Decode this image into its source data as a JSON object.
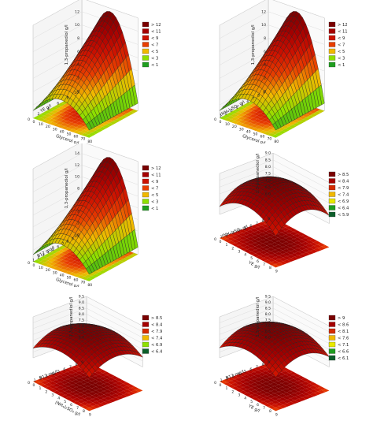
{
  "chart_data": [
    {
      "type": "surface3d",
      "x": {
        "label": "Glycerol g/l",
        "ticks": [
          "0",
          "10",
          "20",
          "30",
          "40",
          "50",
          "60",
          "70",
          "80"
        ],
        "range": [
          0,
          80
        ]
      },
      "y": {
        "label": "YE g/l",
        "ticks": [
          "0",
          "2",
          "4",
          "6",
          "8",
          "10"
        ],
        "range": [
          0,
          10
        ]
      },
      "z": {
        "label": "1,3-propanediol g/l",
        "ticks": [
          "0",
          "2",
          "4",
          "6",
          "8",
          "10",
          "12",
          "14"
        ],
        "range": [
          0,
          14
        ]
      },
      "surface": {
        "z_min": 0.5,
        "z_max": 13.5,
        "shape": "ridge_along_glycerol"
      },
      "legend": {
        "position": "right",
        "entries": [
          {
            "label": "> 12",
            "color": "#7a0000"
          },
          {
            "label": "< 11",
            "color": "#a50000"
          },
          {
            "label": "< 9",
            "color": "#cc1100"
          },
          {
            "label": "< 7",
            "color": "#e83e00"
          },
          {
            "label": "< 5",
            "color": "#f0b800"
          },
          {
            "label": "< 3",
            "color": "#8ee000"
          },
          {
            "label": "< 1",
            "color": "#1f9e1f"
          }
        ]
      }
    },
    {
      "type": "surface3d",
      "x": {
        "label": "Glycerol g/l",
        "ticks": [
          "0",
          "10",
          "20",
          "30",
          "40",
          "50",
          "60",
          "70",
          "80"
        ],
        "range": [
          0,
          80
        ]
      },
      "y": {
        "label": "(NH₄)₂SO₄ g/l",
        "ticks": [
          "0",
          "1",
          "2",
          "3",
          "4",
          "5",
          "6",
          "7",
          "8",
          "9"
        ],
        "range": [
          0,
          9
        ]
      },
      "z": {
        "label": "1,3-propanediol g/l",
        "ticks": [
          "0",
          "2",
          "4",
          "6",
          "8",
          "10",
          "12",
          "14"
        ],
        "range": [
          0,
          14
        ]
      },
      "surface": {
        "z_min": 0.5,
        "z_max": 13.5,
        "shape": "ridge_along_glycerol"
      },
      "legend": {
        "position": "right",
        "entries": [
          {
            "label": "> 12",
            "color": "#7a0000"
          },
          {
            "label": "< 11",
            "color": "#a50000"
          },
          {
            "label": "< 9",
            "color": "#cc1100"
          },
          {
            "label": "< 7",
            "color": "#e83e00"
          },
          {
            "label": "< 5",
            "color": "#f0b800"
          },
          {
            "label": "< 3",
            "color": "#8ee000"
          },
          {
            "label": "< 1",
            "color": "#1f9e1f"
          }
        ]
      }
    },
    {
      "type": "surface3d",
      "x": {
        "label": "Glycerol g/l",
        "ticks": [
          "0",
          "10",
          "20",
          "30",
          "40",
          "50",
          "60",
          "70",
          "80"
        ],
        "range": [
          0,
          80
        ]
      },
      "y": {
        "label": "B12 mg/l",
        "ticks": [
          "0",
          "1",
          "2",
          "3",
          "4",
          "5",
          "6",
          "7",
          "8",
          "9",
          "10"
        ],
        "range": [
          0,
          10
        ]
      },
      "z": {
        "label": "1,3-propanediol g/l",
        "ticks": [
          "0",
          "2",
          "4",
          "6",
          "8",
          "10",
          "12",
          "14",
          "16"
        ],
        "range": [
          0,
          16
        ]
      },
      "surface": {
        "z_min": 0.5,
        "z_max": 15,
        "shape": "ridge_along_glycerol"
      },
      "legend": {
        "position": "right",
        "entries": [
          {
            "label": "> 12",
            "color": "#7a0000"
          },
          {
            "label": "< 11",
            "color": "#a50000"
          },
          {
            "label": "< 9",
            "color": "#cc1100"
          },
          {
            "label": "< 7",
            "color": "#e83e00"
          },
          {
            "label": "< 5",
            "color": "#f0b800"
          },
          {
            "label": "< 3",
            "color": "#8ee000"
          },
          {
            "label": "< 1",
            "color": "#1f9e1f"
          }
        ]
      }
    },
    {
      "type": "surface3d",
      "x": {
        "label": "YE g/l",
        "ticks": [
          "0",
          "1",
          "2",
          "3",
          "4",
          "5",
          "6",
          "7",
          "8",
          "9"
        ],
        "range": [
          0,
          9
        ]
      },
      "y": {
        "label": "(NH₄)₂SO₄ g/l",
        "ticks": [
          "0",
          "1",
          "2",
          "3",
          "4",
          "5",
          "6",
          "7",
          "8",
          "9"
        ],
        "range": [
          0,
          9
        ]
      },
      "z": {
        "label": "1,3-propanediol g/l",
        "ticks": [
          "6.0",
          "6.5",
          "7.0",
          "7.5",
          "8.0",
          "8.5",
          "9.0"
        ],
        "range": [
          6,
          9
        ]
      },
      "surface": {
        "z_min": 6.2,
        "z_max": 8.7,
        "shape": "dome"
      },
      "legend": {
        "position": "right",
        "entries": [
          {
            "label": "> 8.5",
            "color": "#7a0000"
          },
          {
            "label": "< 8.4",
            "color": "#a50000"
          },
          {
            "label": "< 7.9",
            "color": "#d42a00"
          },
          {
            "label": "< 7.4",
            "color": "#f0b800"
          },
          {
            "label": "< 6.9",
            "color": "#e8e800"
          },
          {
            "label": "< 6.4",
            "color": "#1f9e1f"
          },
          {
            "label": "< 5.9",
            "color": "#0d5e2a"
          }
        ]
      }
    },
    {
      "type": "surface3d",
      "x": {
        "label": "(NH₄)₂SO₄ g/l",
        "ticks": [
          "0",
          "1",
          "2",
          "3",
          "4",
          "5",
          "6",
          "7",
          "8",
          "9"
        ],
        "range": [
          0,
          9
        ]
      },
      "y": {
        "label": "B12 mg/l",
        "ticks": [
          "0",
          "1",
          "2",
          "3",
          "4",
          "5",
          "6",
          "7",
          "8",
          "9"
        ],
        "range": [
          0,
          9
        ]
      },
      "z": {
        "label": "1,3-propanediol g/l",
        "ticks": [
          "6.0",
          "6.5",
          "7.0",
          "7.5",
          "8.0",
          "8.5",
          "9.0",
          "9.5"
        ],
        "range": [
          6,
          9.5
        ]
      },
      "surface": {
        "z_min": 6.5,
        "z_max": 8.7,
        "shape": "dome"
      },
      "legend": {
        "position": "right",
        "entries": [
          {
            "label": "> 8.5",
            "color": "#7a0000"
          },
          {
            "label": "< 8.4",
            "color": "#a50000"
          },
          {
            "label": "< 7.9",
            "color": "#d42a00"
          },
          {
            "label": "< 7.4",
            "color": "#f0b800"
          },
          {
            "label": "< 6.9",
            "color": "#8ee000"
          },
          {
            "label": "< 6.4",
            "color": "#0d5e2a"
          }
        ]
      }
    },
    {
      "type": "surface3d",
      "x": {
        "label": "YE g/l",
        "ticks": [
          "0",
          "1",
          "2",
          "3",
          "4",
          "5",
          "6",
          "7",
          "8",
          "9"
        ],
        "range": [
          0,
          9
        ]
      },
      "y": {
        "label": "B12 mg/l",
        "ticks": [
          "0",
          "1",
          "2",
          "3",
          "4",
          "5",
          "6",
          "7",
          "8",
          "9"
        ],
        "range": [
          0,
          9
        ]
      },
      "z": {
        "label": "1,3-propanediol g/l",
        "ticks": [
          "6.0",
          "6.5",
          "7.0",
          "7.5",
          "8.0",
          "8.5",
          "9.0",
          "9.5"
        ],
        "range": [
          6,
          9.5
        ]
      },
      "surface": {
        "z_min": 6.5,
        "z_max": 8.9,
        "shape": "dome"
      },
      "legend": {
        "position": "right",
        "entries": [
          {
            "label": "> 9",
            "color": "#7a0000"
          },
          {
            "label": "< 8.6",
            "color": "#a50000"
          },
          {
            "label": "< 8.1",
            "color": "#d42a00"
          },
          {
            "label": "< 7.6",
            "color": "#f0b800"
          },
          {
            "label": "< 7.1",
            "color": "#e8e800"
          },
          {
            "label": "< 6.6",
            "color": "#1f9e1f"
          },
          {
            "label": "< 6.1",
            "color": "#0d5e2a"
          }
        ]
      }
    }
  ]
}
